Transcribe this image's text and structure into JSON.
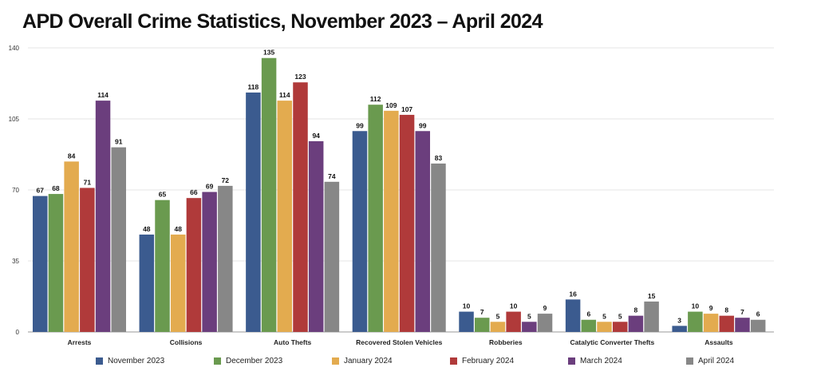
{
  "chart_data": {
    "type": "bar",
    "title": "APD Overall Crime Statistics, November 2023 – April 2024",
    "xlabel": "",
    "ylabel": "",
    "categories": [
      "Arrests",
      "Collisions",
      "Auto Thefts",
      "Recovered Stolen Vehicles",
      "Robberies",
      "Catalytic Converter Thefts",
      "Assaults"
    ],
    "series": [
      {
        "name": "November 2023",
        "color": "#3b5b8f",
        "values": [
          67,
          48,
          118,
          99,
          10,
          16,
          3
        ]
      },
      {
        "name": "December 2023",
        "color": "#6a9a4f",
        "values": [
          68,
          65,
          135,
          112,
          7,
          6,
          10
        ]
      },
      {
        "name": "January 2024",
        "color": "#e3ab4f",
        "values": [
          84,
          48,
          114,
          109,
          5,
          5,
          9
        ]
      },
      {
        "name": "February 2024",
        "color": "#b03a3a",
        "values": [
          71,
          66,
          123,
          107,
          10,
          5,
          8
        ]
      },
      {
        "name": "March 2024",
        "color": "#6b3e7d",
        "values": [
          114,
          69,
          94,
          99,
          5,
          8,
          7
        ]
      },
      {
        "name": "April 2024",
        "color": "#878787",
        "values": [
          91,
          72,
          74,
          83,
          9,
          15,
          6
        ]
      }
    ],
    "ylim": [
      0,
      140
    ],
    "yticks": [
      0,
      35,
      70,
      105,
      140
    ],
    "grid": true,
    "legend_position": "bottom",
    "data_labels": true
  }
}
